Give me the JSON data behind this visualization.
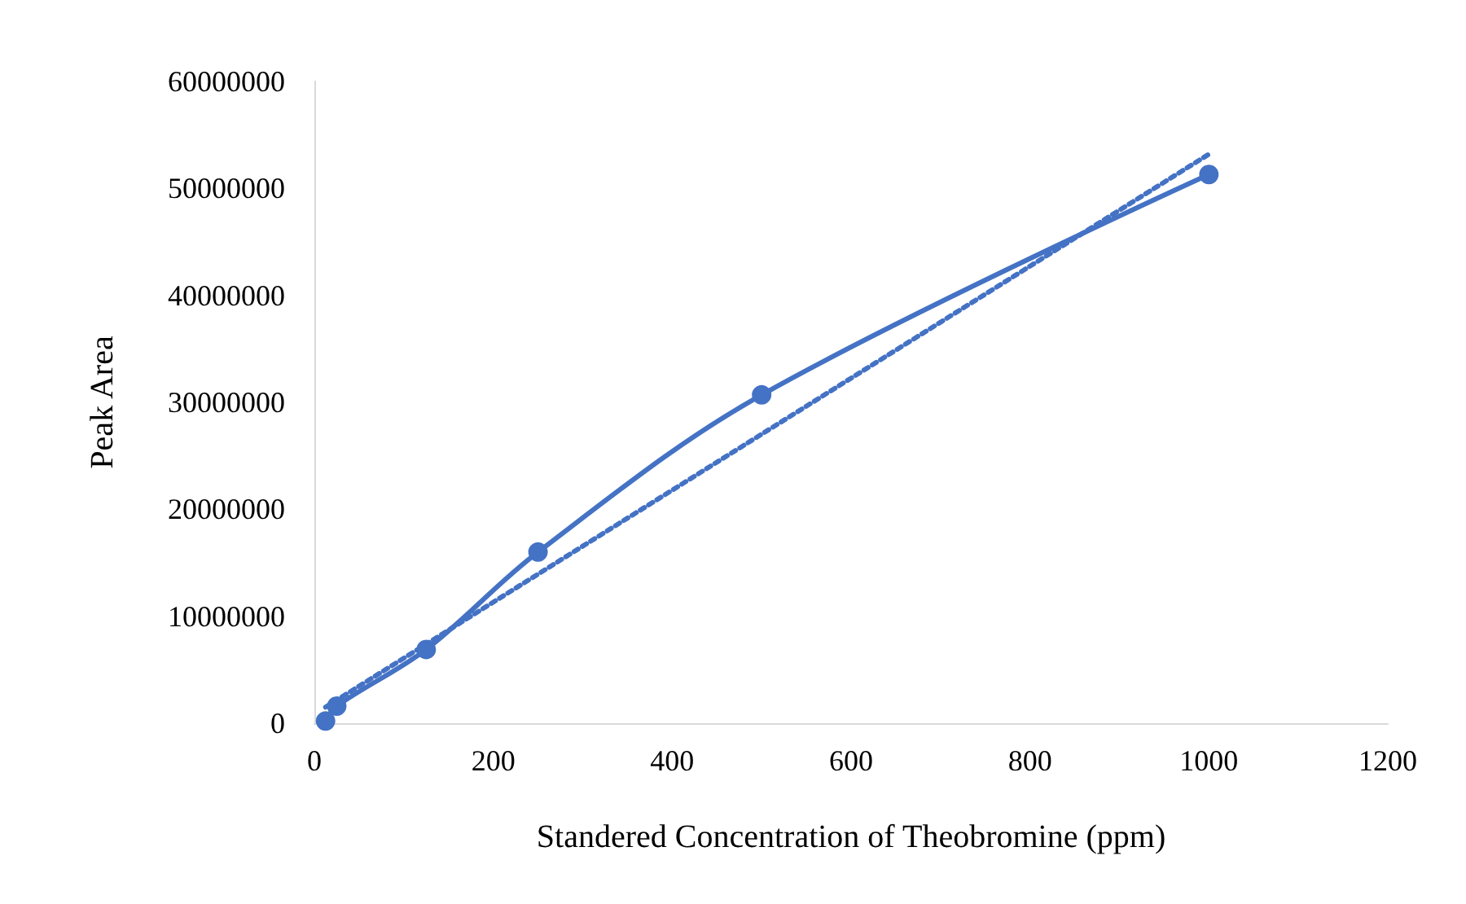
{
  "chart_data": {
    "type": "line",
    "xlabel": "Standered Concentration of Theobromine (ppm)",
    "ylabel": "Peak Area",
    "series": [
      {
        "color": "#4472c4",
        "x": [
          12.5,
          25,
          125,
          250,
          500,
          1000
        ],
        "values": [
          200000,
          1600000,
          6900000,
          16000000,
          30700000,
          51300000
        ],
        "marker": "circle",
        "line_style": "solid"
      },
      {
        "color": "#4472c4",
        "x": [
          12.5,
          1000
        ],
        "values": [
          1500000,
          53200000
        ],
        "marker": "none",
        "line_style": "dotted"
      }
    ],
    "xlim": [
      0,
      1200
    ],
    "xticks": [
      0,
      200,
      400,
      600,
      800,
      1000,
      1200
    ],
    "ylim": [
      0,
      60000000
    ],
    "yticks": [
      0,
      10000000,
      20000000,
      30000000,
      40000000,
      50000000,
      60000000
    ],
    "grid": false
  }
}
